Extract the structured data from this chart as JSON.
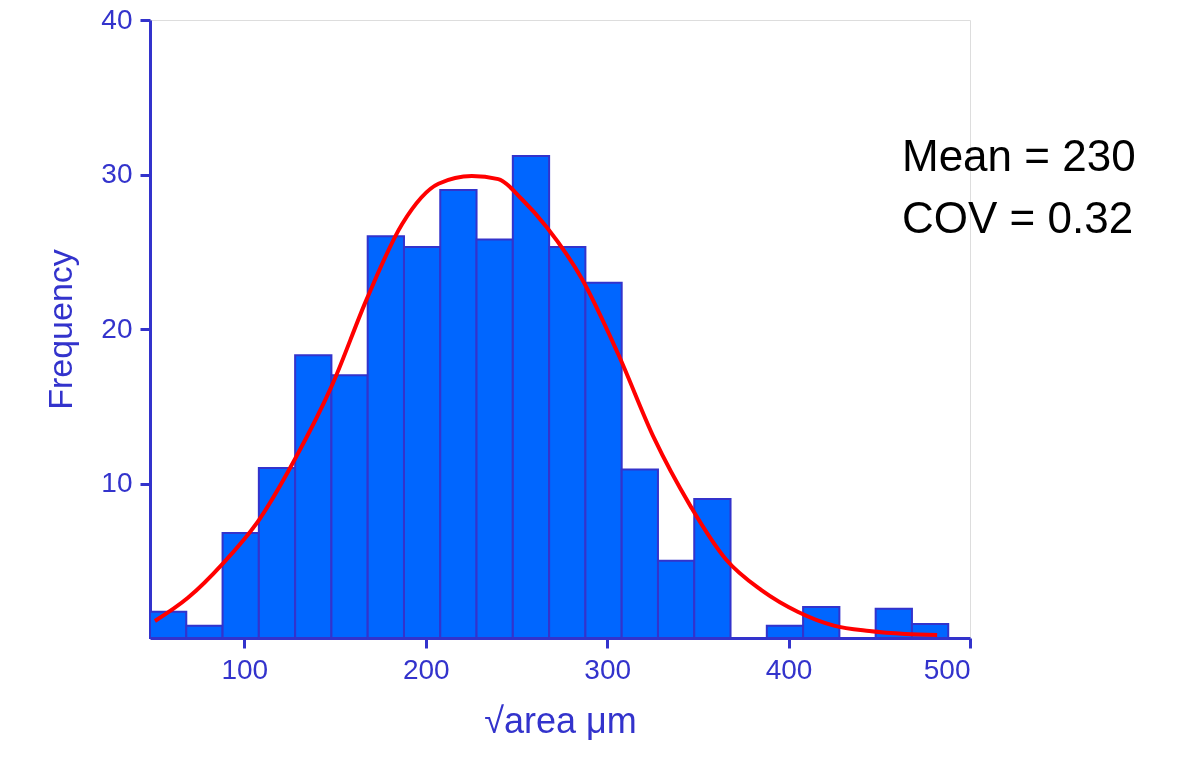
{
  "chart_data": {
    "type": "histogram",
    "xlabel": "√area  μm",
    "ylabel": "Frequency",
    "bins": [
      48,
      68,
      88,
      108,
      128,
      148,
      168,
      188,
      208,
      228,
      248,
      268,
      288,
      308,
      328,
      348,
      368,
      388,
      408,
      428,
      448,
      468,
      488
    ],
    "values": [
      1.7,
      0.8,
      6.8,
      11,
      18.3,
      17,
      26,
      25.3,
      29,
      25.8,
      31.2,
      25.3,
      23,
      10.9,
      5,
      9,
      0,
      0.8,
      2,
      0,
      1.9,
      0.9
    ],
    "color": "#0066ff",
    "series": [
      {
        "type": "line",
        "color": "#ff0000",
        "x": [
          50.7,
          68.9,
          88,
          108.4,
          128,
          148.5,
          167.7,
          187,
          207,
          225.4,
          240,
          253,
          266.6,
          285.8,
          306,
          326,
          345.6,
          365.4,
          385,
          405,
          425,
          444.5,
          464.3,
          481.9
        ],
        "values": [
          1.1,
          2.6,
          4.8,
          7.7,
          11.6,
          16.4,
          22,
          26.8,
          29.4,
          29.9,
          29.7,
          28.4,
          26.6,
          23.3,
          18.4,
          12.9,
          8.6,
          5.1,
          3.1,
          1.7,
          0.8,
          0.45,
          0.26,
          0.2
        ]
      }
    ],
    "annotations": [
      "Mean = 230",
      "COV = 0.32"
    ],
    "xlim": [
      48,
      500
    ],
    "ylim": [
      0,
      40
    ],
    "xticks": [
      100,
      200,
      300,
      400,
      500
    ],
    "yticks": [
      10,
      20,
      30,
      40
    ],
    "grid": false
  }
}
